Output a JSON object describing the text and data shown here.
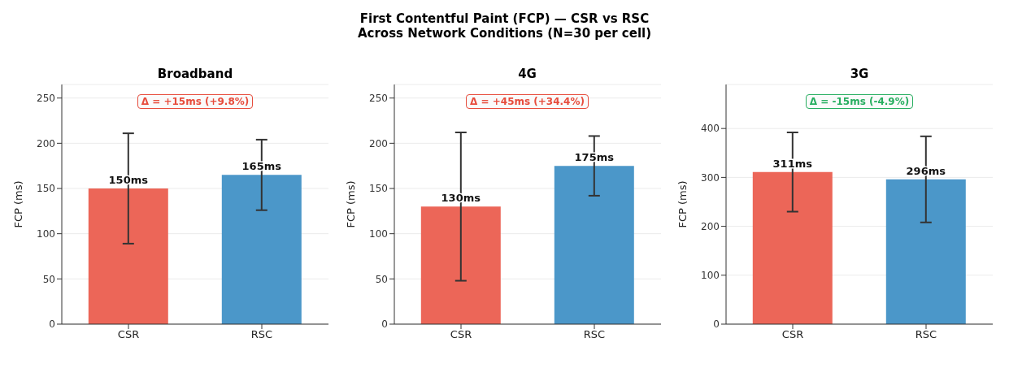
{
  "chart_data": [
    {
      "type": "bar",
      "subtitle": "Broadband",
      "ylabel": "FCP (ms)",
      "categories": [
        "CSR",
        "RSC"
      ],
      "values": [
        150,
        165
      ],
      "errors": [
        61,
        39
      ],
      "colors": [
        "#ec6658",
        "#4b97c9"
      ],
      "value_labels": [
        "150ms",
        "165ms"
      ],
      "annotations": [
        "Δ = +15ms (+9.8%)"
      ],
      "ylim": [
        0,
        265
      ],
      "yticks": [
        0,
        50,
        100,
        150,
        200,
        250
      ],
      "grid": "y"
    },
    {
      "type": "bar",
      "title": "First Contentful Paint (FCP) — CSR vs RSC\nAcross Network Conditions (N=30 per cell)",
      "subtitle": "4G",
      "ylabel": "FCP (ms)",
      "categories": [
        "CSR",
        "RSC"
      ],
      "values": [
        130,
        175
      ],
      "errors": [
        82,
        33
      ],
      "colors": [
        "#ec6658",
        "#4b97c9"
      ],
      "value_labels": [
        "130ms",
        "175ms"
      ],
      "annotations": [
        "Δ = +45ms (+34.4%)"
      ],
      "ylim": [
        0,
        265
      ],
      "yticks": [
        0,
        50,
        100,
        150,
        200,
        250
      ],
      "grid": "y"
    },
    {
      "type": "bar",
      "subtitle": "3G",
      "ylabel": "FCP (ms)",
      "categories": [
        "CSR",
        "RSC"
      ],
      "values": [
        311,
        296
      ],
      "errors": [
        81,
        88
      ],
      "colors": [
        "#ec6658",
        "#4b97c9"
      ],
      "value_labels": [
        "311ms",
        "296ms"
      ],
      "annotations": [
        "Δ = -15ms (-4.9%)"
      ],
      "ylim": [
        0,
        490
      ],
      "yticks": [
        0,
        100,
        200,
        300,
        400
      ],
      "grid": "y"
    }
  ]
}
